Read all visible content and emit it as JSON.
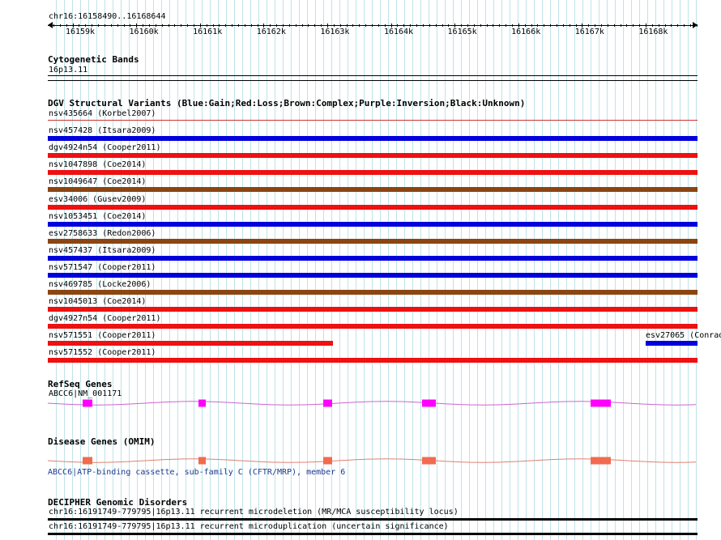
{
  "ruler": {
    "location": "chr16:16158490..16168644",
    "ticks": [
      "16159k",
      "16160k",
      "16161k",
      "16162k",
      "16163k",
      "16164k",
      "16165k",
      "16166k",
      "16167k",
      "16168k"
    ]
  },
  "cytobands": {
    "title": "Cytogenetic Bands",
    "band": "16p13.11"
  },
  "dgv": {
    "title": "DGV Structural Variants (Blue:Gain;Red:Loss;Brown:Complex;Purple:Inversion;Black:Unknown)",
    "colors": {
      "gain": "#0000dd",
      "loss": "#ee1111",
      "complex": "#8b4513",
      "thin_loss": "#cc3333"
    },
    "items": [
      {
        "label": "nsv435664 (Korbel2007)",
        "type": "thin_loss"
      },
      {
        "label": "nsv457428 (Itsara2009)",
        "type": "gain"
      },
      {
        "label": "dgv4924n54 (Cooper2011)",
        "type": "loss"
      },
      {
        "label": "nsv1047898 (Coe2014)",
        "type": "loss"
      },
      {
        "label": "nsv1049647 (Coe2014)",
        "type": "complex"
      },
      {
        "label": "esv34006 (Gusev2009)",
        "type": "loss"
      },
      {
        "label": "nsv1053451 (Coe2014)",
        "type": "gain"
      },
      {
        "label": "esv2758633 (Redon2006)",
        "type": "complex"
      },
      {
        "label": "nsv457437 (Itsara2009)",
        "type": "gain"
      },
      {
        "label": "nsv571547 (Cooper2011)",
        "type": "gain"
      },
      {
        "label": "nsv469785 (Locke2006)",
        "type": "complex"
      },
      {
        "label": "nsv1045013 (Coe2014)",
        "type": "loss"
      },
      {
        "label": "dgv4927n54 (Cooper2011)",
        "type": "loss"
      },
      {
        "label": "nsv571551 (Cooper2011)",
        "type": "loss",
        "partial": true
      },
      {
        "label": "nsv571552 (Cooper2011)",
        "type": "loss"
      }
    ],
    "extra": {
      "label": "esv27065 (Conrad",
      "type": "gain"
    }
  },
  "refseq": {
    "title": "RefSeq Genes",
    "gene": "ABCC6|NM_001171",
    "color": "#ff00ff",
    "intron_color": "#cc66cc"
  },
  "omim": {
    "title": "Disease Genes (OMIM)",
    "gene": "ABCC6|ATP-binding cassette, sub-family C (CFTR/MRP), member 6",
    "color": "#f26a4f",
    "intron_color": "#e08070"
  },
  "decipher": {
    "title": "DECIPHER Genomic Disorders",
    "items": [
      {
        "label": "chr16:16191749-779795|16p13.11 recurrent microdeletion (MR/MCA susceptibility locus)"
      },
      {
        "label": "chr16:16191749-779795|16p13.11 recurrent microduplication (uncertain significance)"
      }
    ]
  }
}
